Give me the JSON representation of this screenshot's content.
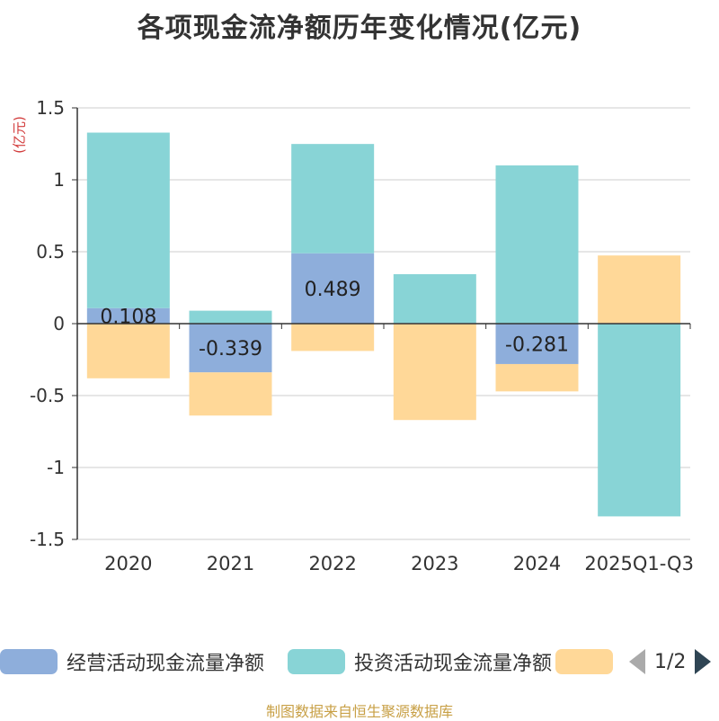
{
  "chart_data": {
    "type": "bar",
    "stacked": true,
    "title": "各项现金流净额历年变化情况(亿元)",
    "ylabel": "(亿元)",
    "ylim": [
      -1.5,
      1.5
    ],
    "yticks": [
      1.5,
      1,
      0.5,
      0,
      -0.5,
      -1,
      -1.5
    ],
    "ytick_labels": [
      "1.5",
      "1",
      "0.5",
      "0",
      "-0.5",
      "-1",
      "-1.5"
    ],
    "categories": [
      "2020",
      "2021",
      "2022",
      "2023",
      "2024",
      "2025Q1-Q3"
    ],
    "series": [
      {
        "name": "经营活动现金流量净额",
        "color": "#8eaedb",
        "values": [
          0.108,
          -0.339,
          0.489,
          0.004,
          -0.281,
          0.004
        ]
      },
      {
        "name": "投资活动现金流量净额",
        "color": "#88d4d6",
        "values": [
          1.22,
          0.09,
          0.76,
          0.34,
          1.1,
          -1.34
        ]
      },
      {
        "name": "",
        "color": "#ffd898",
        "values": [
          -0.38,
          -0.3,
          -0.19,
          -0.67,
          -0.19,
          0.47
        ]
      }
    ],
    "data_labels": [
      "0.108",
      "-0.339",
      "0.489",
      "",
      "-0.281",
      ""
    ],
    "grid": true,
    "legend": "bottom"
  },
  "legend": {
    "items": [
      {
        "label": "经营活动现金流量净额",
        "color": "#8eaedb"
      },
      {
        "label": "投资活动现金流量净额",
        "color": "#88d4d6"
      },
      {
        "label": "",
        "color": "#ffd898"
      }
    ],
    "page_text": "1/2"
  },
  "source": "制图数据来自恒生聚源数据库"
}
